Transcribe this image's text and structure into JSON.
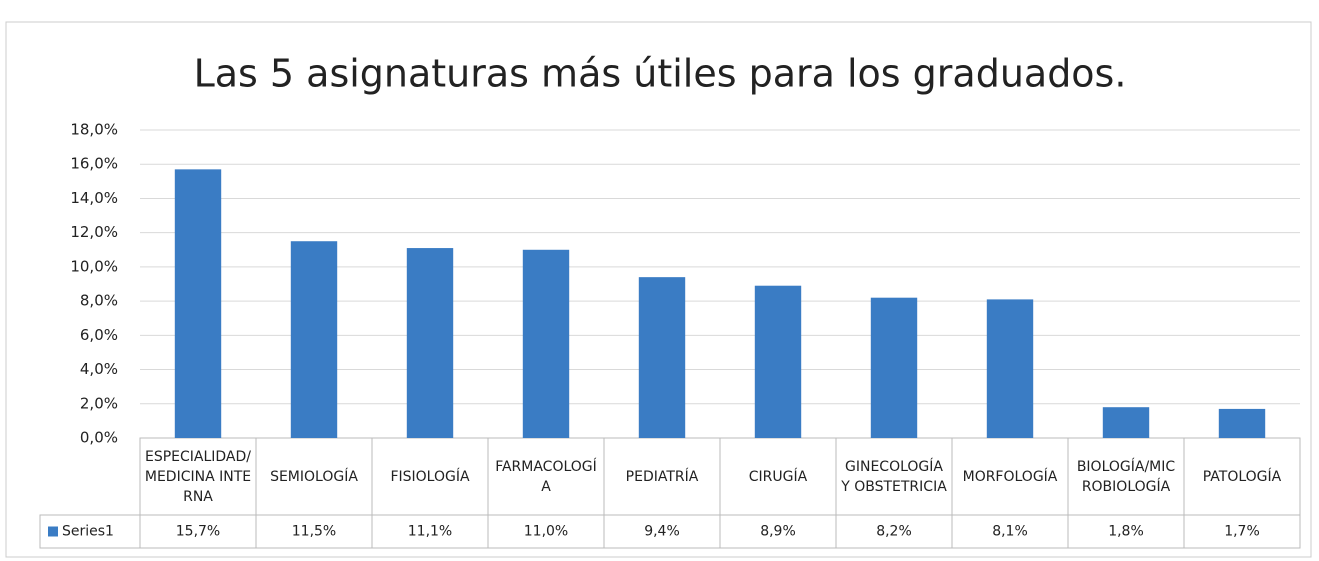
{
  "chart_data": {
    "type": "bar",
    "title": "Las 5 asignaturas más útiles para los graduados.",
    "categories": [
      "ESPECIALIDAD/MEDICINA INTERNA",
      "SEMIOLOGÍA",
      "FISIOLOGÍA",
      "FARMACOLOGÍA",
      "PEDIATRÍA",
      "CIRUGÍA",
      "GINECOLOGÍA Y OBSTETRICIA",
      "MORFOLOGÍA",
      "BIOLOGÍA/MICROBIOLOGÍA",
      "PATOLOGÍA"
    ],
    "series": [
      {
        "name": "Series1",
        "color": "#3a7cc4",
        "values": [
          15.7,
          11.5,
          11.1,
          11.0,
          9.4,
          8.9,
          8.2,
          8.1,
          1.8,
          1.7
        ],
        "value_labels": [
          "15,7%",
          "11,5%",
          "11,1%",
          "11,0%",
          "9,4%",
          "8,9%",
          "8,2%",
          "8,1%",
          "1,8%",
          "1,7%"
        ]
      }
    ],
    "ylim": [
      0,
      18
    ],
    "yticks": [
      {
        "value": 0,
        "label": "0,0%"
      },
      {
        "value": 2,
        "label": "2,0%"
      },
      {
        "value": 4,
        "label": "4,0%"
      },
      {
        "value": 6,
        "label": "6,0%"
      },
      {
        "value": 8,
        "label": "8,0%"
      },
      {
        "value": 10,
        "label": "10,0%"
      },
      {
        "value": 12,
        "label": "12,0%"
      },
      {
        "value": 14,
        "label": "14,0%"
      },
      {
        "value": 16,
        "label": "16,0%"
      },
      {
        "value": 18,
        "label": "18,0%"
      }
    ],
    "grid": true
  }
}
